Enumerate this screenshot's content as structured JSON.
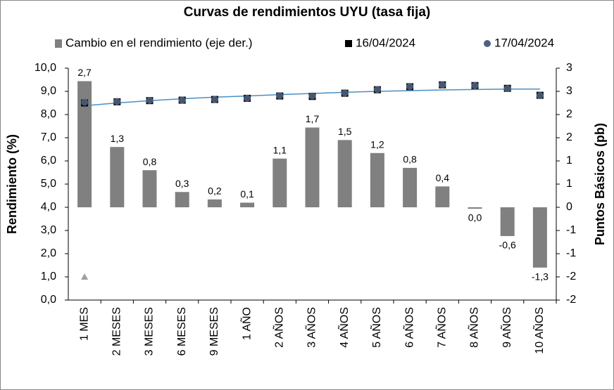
{
  "chart_data": {
    "type": "bar",
    "title": "Curvas de rendimientos UYU (tasa fija)",
    "legend_position": "top",
    "y_label": "Rendimiento (%)",
    "y2_label": "Puntos Básicos (pb)",
    "categories": [
      "1 MES",
      "2 MESES",
      "3 MESES",
      "6 MESES",
      "9 MESES",
      "1 AÑO",
      "2 AÑOS",
      "3 AÑOS",
      "4 AÑOS",
      "5 AÑOS",
      "6 AÑOS",
      "7 AÑOS",
      "8 AÑOS",
      "9 AÑOS",
      "10 AÑOS"
    ],
    "ylim": [
      0,
      10
    ],
    "yticks": [
      {
        "value": 0,
        "label": "0,0"
      },
      {
        "value": 1,
        "label": "1,0"
      },
      {
        "value": 2,
        "label": "2,0"
      },
      {
        "value": 3,
        "label": "3,0"
      },
      {
        "value": 4,
        "label": "4,0"
      },
      {
        "value": 5,
        "label": "5,0"
      },
      {
        "value": 6,
        "label": "6,0"
      },
      {
        "value": 7,
        "label": "7,0"
      },
      {
        "value": 8,
        "label": "8,0"
      },
      {
        "value": 9,
        "label": "9,0"
      },
      {
        "value": 10,
        "label": "10,0"
      }
    ],
    "y2lim": [
      -2,
      3
    ],
    "y2ticks": [
      -2,
      {
        "value": -1.5,
        "label": "-2"
      },
      -1,
      {
        "value": -0.5,
        "label": "-1"
      },
      0,
      {
        "value": 0.5,
        "label": "1"
      },
      1,
      {
        "value": 1.5,
        "label": "2"
      },
      2,
      {
        "value": 2.5,
        "label": "3"
      },
      3
    ],
    "series": [
      {
        "name": "Cambio en el rendimiento (eje der.)",
        "type": "bar",
        "axis": "y2",
        "color": "#808080",
        "values": [
          2.72,
          1.3,
          0.8,
          0.33,
          0.17,
          0.1,
          1.05,
          1.72,
          1.45,
          1.17,
          0.85,
          0.45,
          -0.02,
          -0.62,
          -1.3
        ],
        "value_labels": [
          "2,7",
          "1,3",
          "0,8",
          "0,3",
          "0,2",
          "0,1",
          "1,1",
          "1,7",
          "1,5",
          "1,2",
          "0,8",
          "0,4",
          "0,0",
          "-0,6",
          "-1,3"
        ]
      },
      {
        "name": "16/04/2024",
        "type": "scatter",
        "marker": "square",
        "color": "#000000",
        "values": [
          8.5,
          8.55,
          8.6,
          8.62,
          8.65,
          8.7,
          8.8,
          8.78,
          8.92,
          9.07,
          9.2,
          9.28,
          9.25,
          9.13,
          8.83
        ]
      },
      {
        "name": "17/04/2024",
        "type": "scatter",
        "marker": "circle",
        "color": "#4f6180",
        "values": [
          8.53,
          8.56,
          8.61,
          8.62,
          8.65,
          8.7,
          8.81,
          8.8,
          8.93,
          9.08,
          9.21,
          9.28,
          9.25,
          9.12,
          8.82
        ]
      },
      {
        "type": "line",
        "color": "#4a8fc4",
        "values": [
          8.38,
          8.5,
          8.6,
          8.68,
          8.75,
          8.8,
          8.86,
          8.91,
          8.96,
          9.0,
          9.03,
          9.06,
          9.08,
          9.1,
          9.1
        ]
      },
      {
        "type": "scatter",
        "marker": "triangle",
        "color": "#a0a0a0",
        "values": [
          1.0,
          null,
          null,
          null,
          null,
          null,
          null,
          null,
          null,
          null,
          null,
          null,
          null,
          null,
          null
        ]
      }
    ]
  }
}
